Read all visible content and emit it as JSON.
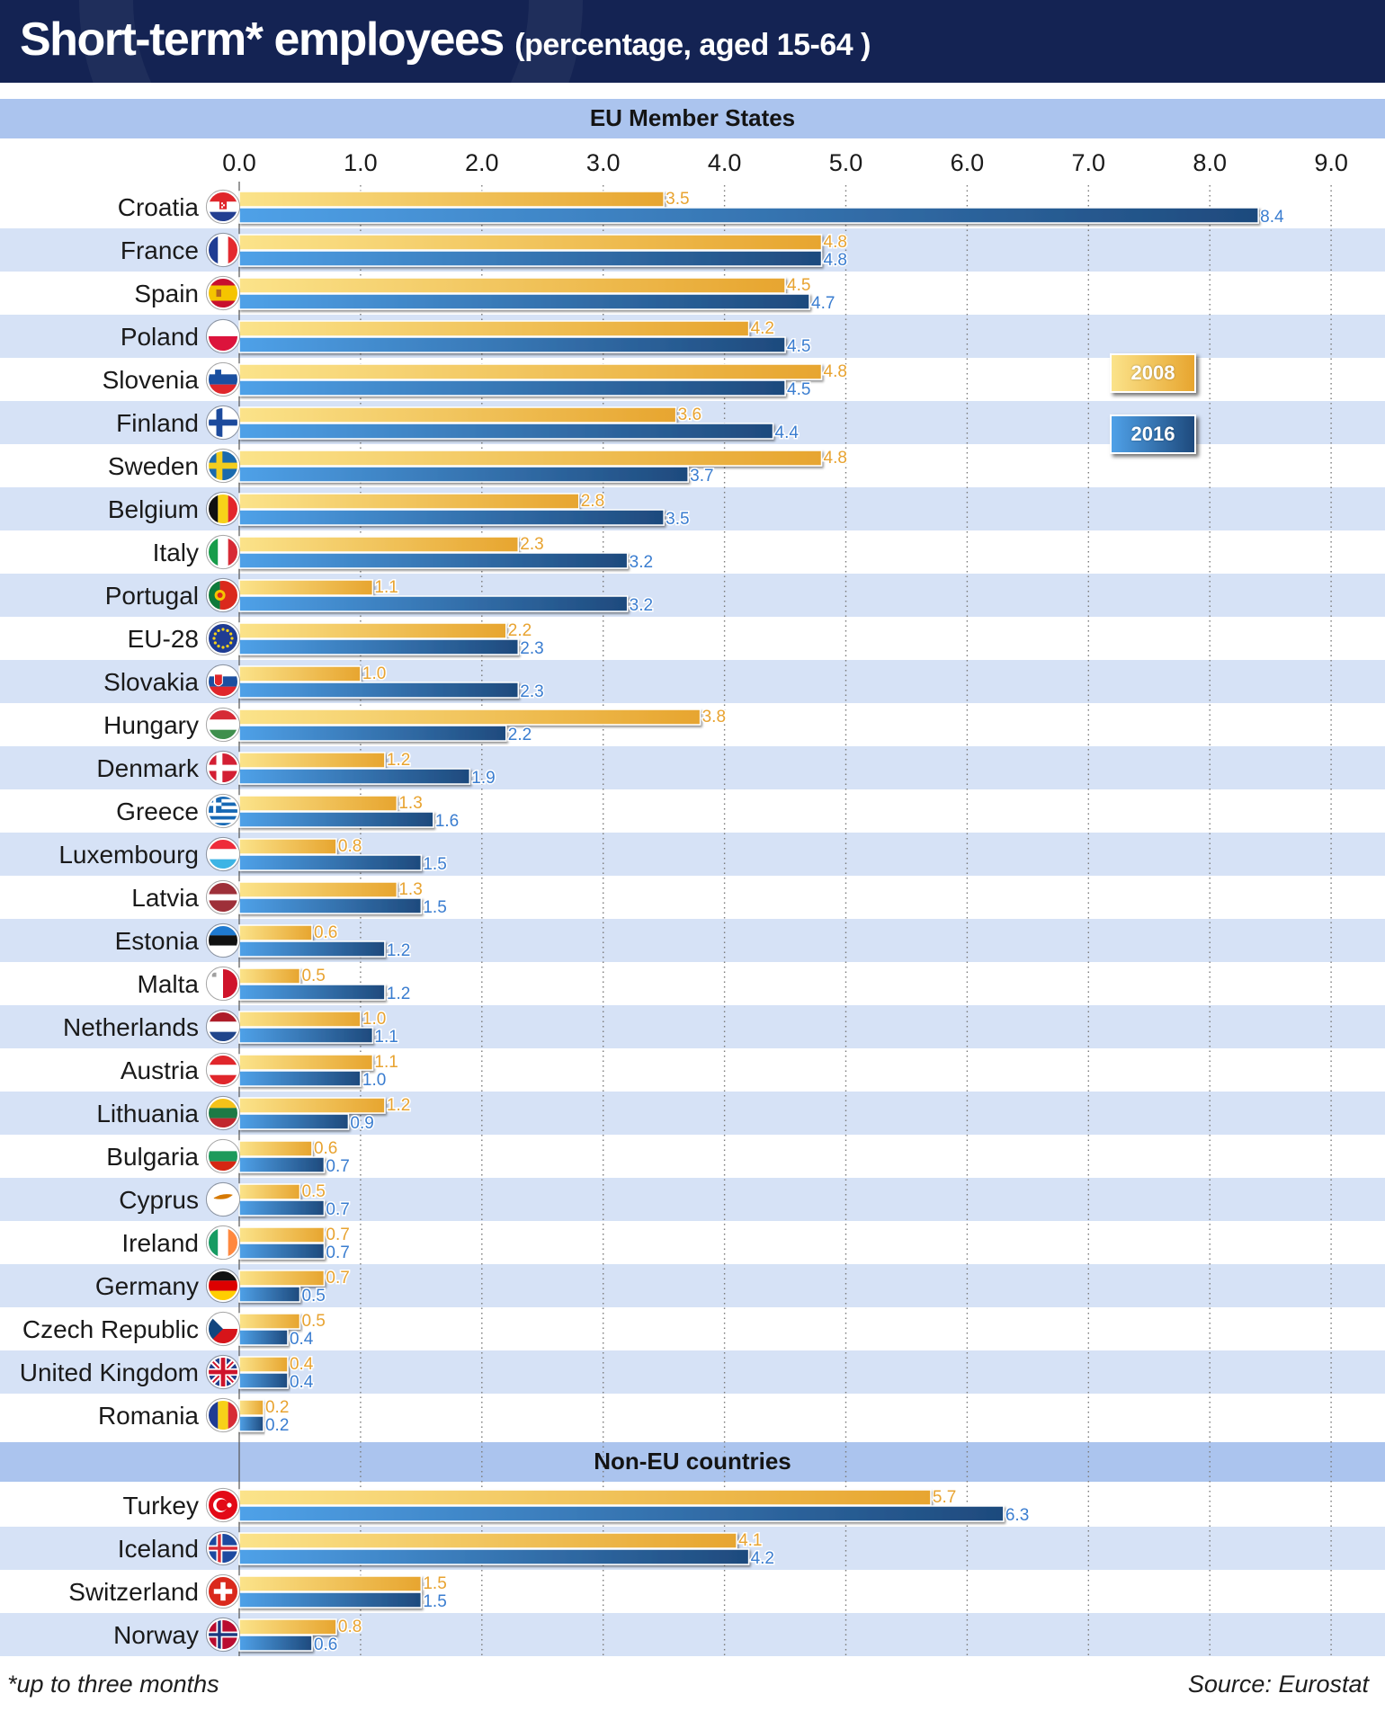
{
  "header": {
    "title": "Short-term* employees",
    "subtitle": "(percentage, aged 15-64 )"
  },
  "footnote": "*up to three months",
  "source": "Source: Eurostat",
  "colors": {
    "header_bg": "#142353",
    "band": "#d6e2f6",
    "section_header": "#abc4ee",
    "bar_2008_light": "#fbe38a",
    "bar_2008_dark": "#e7a52f",
    "bar_2016_light": "#4fa1e8",
    "bar_2016_dark": "#1e4a7d",
    "label_2008": "#e8a330",
    "label_2016": "#3a7dd0"
  },
  "chart_data": {
    "type": "bar",
    "orientation": "horizontal",
    "title": "Short-term* employees (percentage, aged 15-64 )",
    "xlim": [
      0,
      9
    ],
    "x_ticks": [
      "0.0",
      "1.0",
      "2.0",
      "3.0",
      "4.0",
      "5.0",
      "6.0",
      "7.0",
      "8.0",
      "9.0"
    ],
    "grid": "vertical dotted",
    "legend": {
      "position": "right",
      "entries": [
        "2008",
        "2016"
      ]
    },
    "series_names": [
      "2008",
      "2016"
    ],
    "groups": [
      {
        "label": "EU Member States",
        "rows": [
          {
            "country": "Croatia",
            "flag": "croatia-flag-icon",
            "v2008": 3.5,
            "v2016": 8.4
          },
          {
            "country": "France",
            "flag": "france-flag-icon",
            "v2008": 4.8,
            "v2016": 4.8
          },
          {
            "country": "Spain",
            "flag": "spain-flag-icon",
            "v2008": 4.5,
            "v2016": 4.7
          },
          {
            "country": "Poland",
            "flag": "poland-flag-icon",
            "v2008": 4.2,
            "v2016": 4.5
          },
          {
            "country": "Slovenia",
            "flag": "slovenia-flag-icon",
            "v2008": 4.8,
            "v2016": 4.5
          },
          {
            "country": "Finland",
            "flag": "finland-flag-icon",
            "v2008": 3.6,
            "v2016": 4.4
          },
          {
            "country": "Sweden",
            "flag": "sweden-flag-icon",
            "v2008": 4.8,
            "v2016": 3.7
          },
          {
            "country": "Belgium",
            "flag": "belgium-flag-icon",
            "v2008": 2.8,
            "v2016": 3.5
          },
          {
            "country": "Italy",
            "flag": "italy-flag-icon",
            "v2008": 2.3,
            "v2016": 3.2
          },
          {
            "country": "Portugal",
            "flag": "portugal-flag-icon",
            "v2008": 1.1,
            "v2016": 3.2
          },
          {
            "country": "EU-28",
            "flag": "eu-flag-icon",
            "v2008": 2.2,
            "v2016": 2.3
          },
          {
            "country": "Slovakia",
            "flag": "slovakia-flag-icon",
            "v2008": 1.0,
            "v2016": 2.3
          },
          {
            "country": "Hungary",
            "flag": "hungary-flag-icon",
            "v2008": 3.8,
            "v2016": 2.2
          },
          {
            "country": "Denmark",
            "flag": "denmark-flag-icon",
            "v2008": 1.2,
            "v2016": 1.9
          },
          {
            "country": "Greece",
            "flag": "greece-flag-icon",
            "v2008": 1.3,
            "v2016": 1.6
          },
          {
            "country": "Luxembourg",
            "flag": "luxembourg-flag-icon",
            "v2008": 0.8,
            "v2016": 1.5
          },
          {
            "country": "Latvia",
            "flag": "latvia-flag-icon",
            "v2008": 1.3,
            "v2016": 1.5
          },
          {
            "country": "Estonia",
            "flag": "estonia-flag-icon",
            "v2008": 0.6,
            "v2016": 1.2
          },
          {
            "country": "Malta",
            "flag": "malta-flag-icon",
            "v2008": 0.5,
            "v2016": 1.2
          },
          {
            "country": "Netherlands",
            "flag": "netherlands-flag-icon",
            "v2008": 1.0,
            "v2016": 1.1
          },
          {
            "country": "Austria",
            "flag": "austria-flag-icon",
            "v2008": 1.1,
            "v2016": 1.0
          },
          {
            "country": "Lithuania",
            "flag": "lithuania-flag-icon",
            "v2008": 1.2,
            "v2016": 0.9
          },
          {
            "country": "Bulgaria",
            "flag": "bulgaria-flag-icon",
            "v2008": 0.6,
            "v2016": 0.7
          },
          {
            "country": "Cyprus",
            "flag": "cyprus-flag-icon",
            "v2008": 0.5,
            "v2016": 0.7
          },
          {
            "country": "Ireland",
            "flag": "ireland-flag-icon",
            "v2008": 0.7,
            "v2016": 0.7
          },
          {
            "country": "Germany",
            "flag": "germany-flag-icon",
            "v2008": 0.7,
            "v2016": 0.5
          },
          {
            "country": "Czech Republic",
            "flag": "czech-republic-flag-icon",
            "v2008": 0.5,
            "v2016": 0.4
          },
          {
            "country": "United Kingdom",
            "flag": "united-kingdom-flag-icon",
            "v2008": 0.4,
            "v2016": 0.4
          },
          {
            "country": "Romania",
            "flag": "romania-flag-icon",
            "v2008": 0.2,
            "v2016": 0.2
          }
        ]
      },
      {
        "label": "Non-EU countries",
        "rows": [
          {
            "country": "Turkey",
            "flag": "turkey-flag-icon",
            "v2008": 5.7,
            "v2016": 6.3
          },
          {
            "country": "Iceland",
            "flag": "iceland-flag-icon",
            "v2008": 4.1,
            "v2016": 4.2
          },
          {
            "country": "Switzerland",
            "flag": "switzerland-flag-icon",
            "v2008": 1.5,
            "v2016": 1.5
          },
          {
            "country": "Norway",
            "flag": "norway-flag-icon",
            "v2008": 0.8,
            "v2016": 0.6
          }
        ]
      }
    ]
  }
}
